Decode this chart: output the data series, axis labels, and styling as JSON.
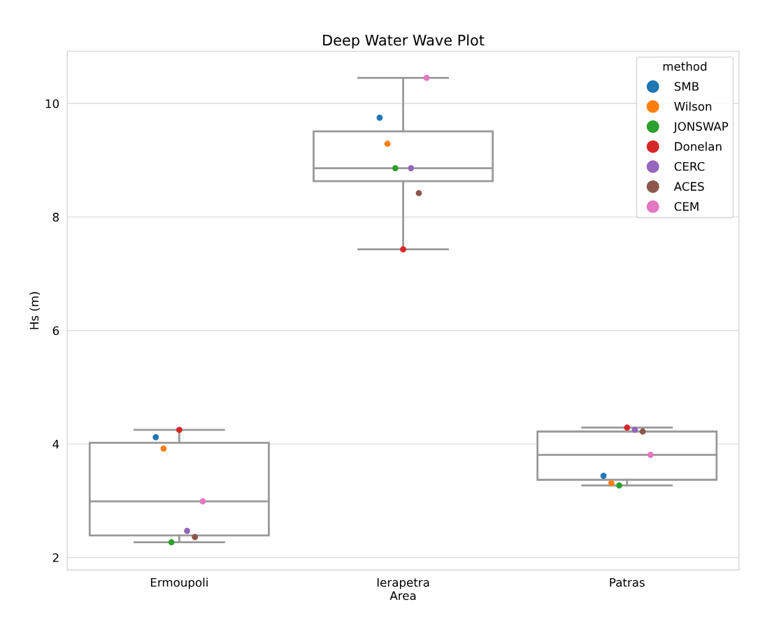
{
  "chart_data": {
    "type": "box",
    "title": "Deep Water Wave Plot",
    "xlabel": "Area",
    "ylabel": "Hs (m)",
    "legend_title": "method",
    "categories": [
      "Ermoupoli",
      "Ierapetra",
      "Patras"
    ],
    "boxes": [
      {
        "low": 2.27,
        "q1": 2.39,
        "median": 2.99,
        "q3": 4.02,
        "high": 4.25
      },
      {
        "low": 7.43,
        "q1": 8.63,
        "median": 8.86,
        "q3": 9.51,
        "high": 10.45
      },
      {
        "low": 3.27,
        "q1": 3.37,
        "median": 3.81,
        "q3": 4.22,
        "high": 4.29
      }
    ],
    "color": "#999999",
    "series": [
      {
        "type": "scatter",
        "name": "SMB",
        "color": "#1f77b4",
        "x": [
          "Ermoupoli",
          "Ierapetra",
          "Patras"
        ],
        "values": [
          4.12,
          9.75,
          3.44
        ]
      },
      {
        "type": "scatter",
        "name": "Wilson",
        "color": "#ff7f0e",
        "x": [
          "Ermoupoli",
          "Ierapetra",
          "Patras"
        ],
        "values": [
          3.92,
          9.29,
          3.31
        ]
      },
      {
        "type": "scatter",
        "name": "JONSWAP",
        "color": "#2ca02c",
        "x": [
          "Ermoupoli",
          "Ierapetra",
          "Patras"
        ],
        "values": [
          2.27,
          8.86,
          3.27
        ]
      },
      {
        "type": "scatter",
        "name": "Donelan",
        "color": "#d62728",
        "x": [
          "Ermoupoli",
          "Ierapetra",
          "Patras"
        ],
        "values": [
          4.25,
          7.43,
          4.29
        ]
      },
      {
        "type": "scatter",
        "name": "CERC",
        "color": "#9467bd",
        "x": [
          "Ermoupoli",
          "Ierapetra",
          "Patras"
        ],
        "values": [
          2.47,
          8.86,
          4.25
        ]
      },
      {
        "type": "scatter",
        "name": "ACES",
        "color": "#8c564b",
        "x": [
          "Ermoupoli",
          "Ierapetra",
          "Patras"
        ],
        "values": [
          2.36,
          8.42,
          4.22
        ]
      },
      {
        "type": "scatter",
        "name": "CEM",
        "color": "#e377c2",
        "x": [
          "Ermoupoli",
          "Ierapetra",
          "Patras"
        ],
        "values": [
          2.99,
          10.45,
          3.81
        ]
      }
    ],
    "ylim": [
      1.78,
      10.92
    ],
    "yticks": [
      2,
      4,
      6,
      8,
      10
    ],
    "grid": "y",
    "legend": "top right",
    "marker": "circle"
  }
}
